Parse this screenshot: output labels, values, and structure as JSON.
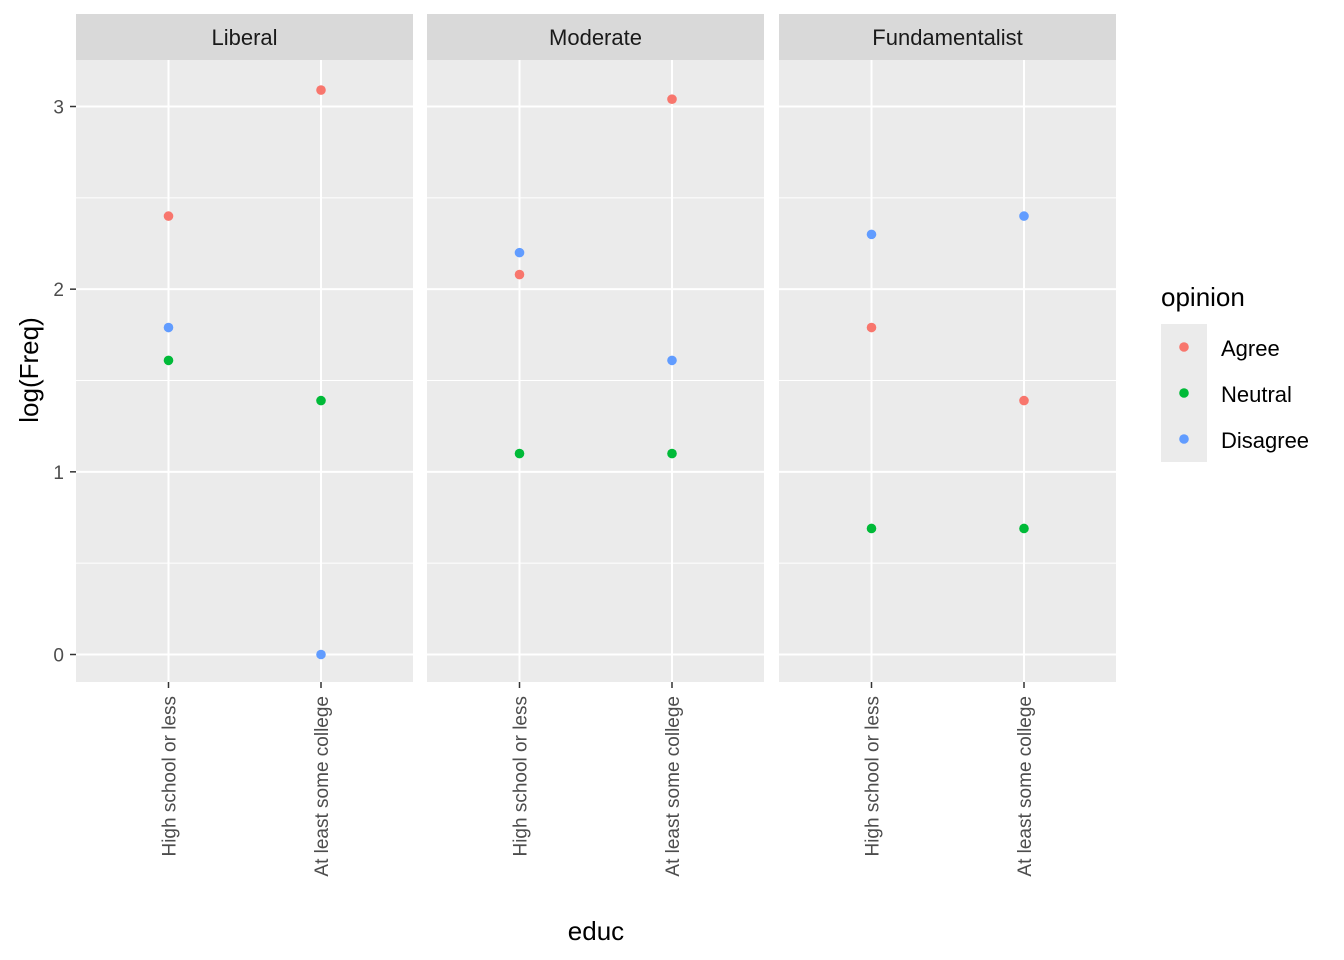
{
  "chart_data": {
    "type": "scatter",
    "facet_variable": "",
    "panels": [
      {
        "label": "Liberal",
        "points": [
          {
            "educ": "High school or less",
            "opinion": "Agree",
            "y": 2.4
          },
          {
            "educ": "High school or less",
            "opinion": "Neutral",
            "y": 1.61
          },
          {
            "educ": "High school or less",
            "opinion": "Disagree",
            "y": 1.79
          },
          {
            "educ": "At least some college",
            "opinion": "Agree",
            "y": 3.09
          },
          {
            "educ": "At least some college",
            "opinion": "Neutral",
            "y": 1.39
          },
          {
            "educ": "At least some college",
            "opinion": "Disagree",
            "y": 0.0
          }
        ]
      },
      {
        "label": "Moderate",
        "points": [
          {
            "educ": "High school or less",
            "opinion": "Agree",
            "y": 2.08
          },
          {
            "educ": "High school or less",
            "opinion": "Neutral",
            "y": 1.1
          },
          {
            "educ": "High school or less",
            "opinion": "Disagree",
            "y": 2.2
          },
          {
            "educ": "At least some college",
            "opinion": "Agree",
            "y": 3.04
          },
          {
            "educ": "At least some college",
            "opinion": "Neutral",
            "y": 1.1
          },
          {
            "educ": "At least some college",
            "opinion": "Disagree",
            "y": 1.61
          }
        ]
      },
      {
        "label": "Fundamentalist",
        "points": [
          {
            "educ": "High school or less",
            "opinion": "Agree",
            "y": 1.79
          },
          {
            "educ": "High school or less",
            "opinion": "Neutral",
            "y": 0.69
          },
          {
            "educ": "High school or less",
            "opinion": "Disagree",
            "y": 2.3
          },
          {
            "educ": "At least some college",
            "opinion": "Agree",
            "y": 1.39
          },
          {
            "educ": "At least some college",
            "opinion": "Neutral",
            "y": 0.69
          },
          {
            "educ": "At least some college",
            "opinion": "Disagree",
            "y": 2.4
          }
        ]
      }
    ],
    "categories": [
      "High school or less",
      "At least some college"
    ],
    "xlabel": "educ",
    "ylabel": "log(Freq)",
    "yticks": [
      "0",
      "1",
      "2",
      "3"
    ],
    "ylim": [
      -0.155,
      3.245
    ],
    "legend": {
      "title": "opinion",
      "position": "right",
      "entries": [
        {
          "label": "Agree",
          "color": "#F8766D"
        },
        {
          "label": "Neutral",
          "color": "#00BA38"
        },
        {
          "label": "Disagree",
          "color": "#619CFF"
        }
      ]
    },
    "grid": true,
    "colors": {
      "panel_background": "#EBEBEB",
      "strip_background": "#D9D9D9",
      "grid_line": "#FFFFFF"
    }
  }
}
